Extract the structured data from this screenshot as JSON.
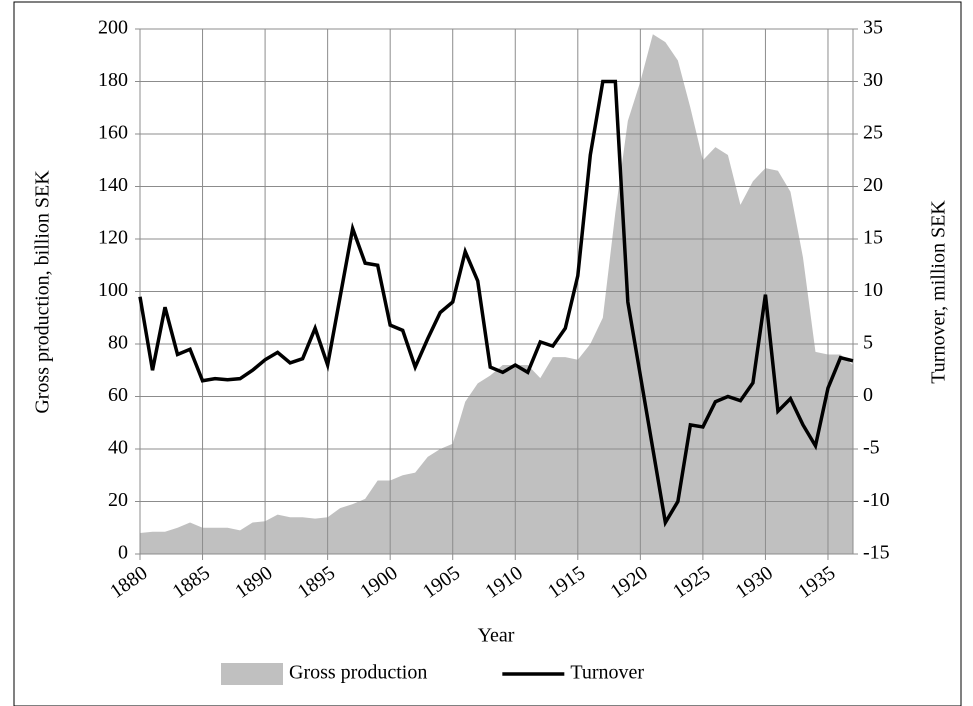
{
  "chart_data": {
    "type": "area-line",
    "xlabel": "Year",
    "ylabel": "Gross production, billion SEK",
    "y2label": "Turnover, million SEK",
    "x": [
      1880,
      1881,
      1882,
      1883,
      1884,
      1885,
      1886,
      1887,
      1888,
      1889,
      1890,
      1891,
      1892,
      1893,
      1894,
      1895,
      1896,
      1897,
      1898,
      1899,
      1900,
      1901,
      1902,
      1903,
      1904,
      1905,
      1906,
      1907,
      1908,
      1909,
      1910,
      1911,
      1912,
      1913,
      1914,
      1915,
      1916,
      1917,
      1918,
      1919,
      1920,
      1921,
      1922,
      1923,
      1924,
      1925,
      1926,
      1927,
      1928,
      1929,
      1930,
      1931,
      1932,
      1933,
      1934,
      1935,
      1936,
      1937
    ],
    "xlim": [
      1880,
      1937
    ],
    "xticks": [
      1880,
      1885,
      1890,
      1895,
      1900,
      1905,
      1910,
      1915,
      1920,
      1925,
      1930,
      1935
    ],
    "ylim": [
      0,
      200
    ],
    "yticks": [
      0,
      20,
      40,
      60,
      80,
      100,
      120,
      140,
      160,
      180,
      200
    ],
    "y2lim": [
      -15,
      35
    ],
    "y2ticks": [
      -15,
      -10,
      -5,
      0,
      5,
      10,
      15,
      20,
      25,
      30,
      35
    ],
    "grid": true,
    "series": [
      {
        "name": "Gross production",
        "kind": "area",
        "color": "#c0c0c0",
        "values": [
          8,
          8.5,
          8.5,
          10,
          12,
          10,
          10,
          10,
          9,
          12,
          12.5,
          15,
          14,
          14,
          13.5,
          14,
          17.5,
          19,
          21,
          28,
          28,
          30,
          31,
          37,
          40,
          42,
          58,
          65,
          68,
          72,
          72,
          72,
          67,
          75,
          75,
          74,
          80,
          90,
          130,
          165,
          180,
          198,
          195,
          188,
          170,
          150,
          155,
          152,
          133,
          142,
          147,
          146,
          138,
          113,
          77,
          76,
          76,
          72
        ]
      },
      {
        "name": "Turnover",
        "kind": "line",
        "axis": "y2",
        "color": "#000000",
        "values": [
          9.5,
          2.5,
          8.5,
          4,
          4.5,
          1.5,
          1.7,
          1.6,
          1.7,
          2.5,
          3.5,
          4.2,
          3.2,
          3.6,
          6.5,
          3,
          9.5,
          16,
          12.7,
          12.5,
          6.8,
          6.3,
          2.8,
          5.5,
          8,
          9,
          13.8,
          11,
          2.8,
          2.3,
          3,
          2.3,
          5.2,
          4.8,
          6.5,
          11.5,
          23,
          30,
          30,
          9,
          2,
          -5,
          -12,
          -10,
          -2.7,
          -2.9,
          -0.5,
          0,
          -0.4,
          1.3,
          9.7,
          -1.4,
          -0.2,
          -2.7,
          -4.7,
          0.8,
          3.7,
          3.4
        ]
      }
    ]
  }
}
